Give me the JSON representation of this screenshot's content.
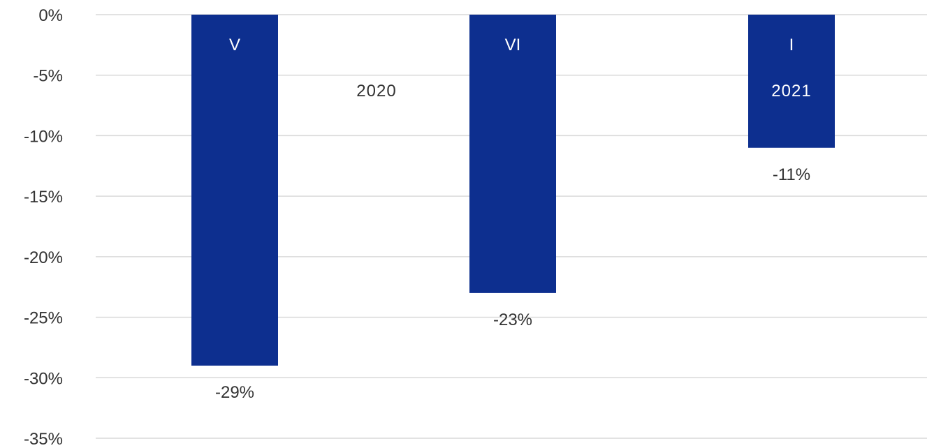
{
  "chart_data": {
    "type": "bar",
    "categories": [
      "V",
      "VI",
      "I"
    ],
    "values": [
      -29,
      -23,
      -11
    ],
    "value_labels": [
      "-29%",
      "-23%",
      "-11%"
    ],
    "ylim": [
      -35,
      0
    ],
    "yticks": [
      0,
      -5,
      -10,
      -15,
      -20,
      -25,
      -30,
      -35
    ],
    "ytick_labels": [
      "0%",
      "-5%",
      "-10%",
      "-15%",
      "-20%",
      "-25%",
      "-30%",
      "-35%"
    ],
    "grid": true,
    "annotations": [
      {
        "text": "2020",
        "near_category": "V",
        "position": "outside-bar",
        "color": "#333333"
      },
      {
        "text": "2021",
        "near_category": "I",
        "position": "inside-bar",
        "color": "#ffffff"
      }
    ],
    "colors": {
      "bar": "#0d2f8f",
      "grid": "#d9d9d9",
      "text": "#333333",
      "label_inside": "#ffffff"
    },
    "title": "",
    "xlabel": "",
    "ylabel": ""
  }
}
